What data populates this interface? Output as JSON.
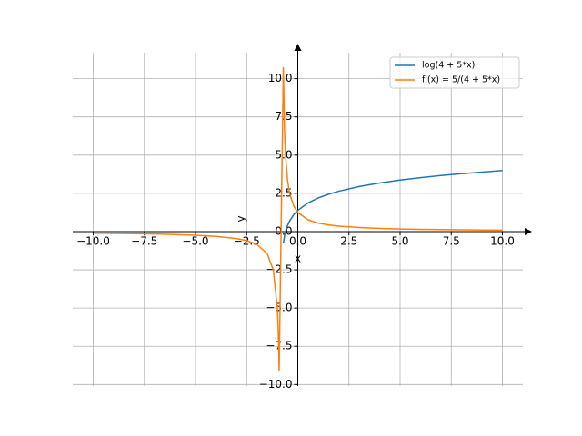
{
  "chart_data": {
    "type": "line",
    "x": [
      -10,
      -9,
      -8,
      -7,
      -6,
      -5,
      -4,
      -3,
      -2.5,
      -2,
      -1.5,
      -1.2,
      -1,
      -0.95,
      -0.91,
      -0.707,
      -0.65,
      -0.6,
      -0.5,
      -0.4,
      -0.2,
      0,
      0.5,
      1,
      1.5,
      2,
      3,
      4,
      5,
      6,
      7,
      8,
      9,
      10
    ],
    "series": [
      {
        "name": "log(4 + 5*x)",
        "color": "#1f77b4",
        "values": [
          null,
          null,
          null,
          null,
          null,
          null,
          null,
          null,
          null,
          null,
          null,
          null,
          null,
          null,
          null,
          -0.766,
          -0.288,
          0,
          0.405,
          0.693,
          1.099,
          1.386,
          1.872,
          2.197,
          2.442,
          2.639,
          2.944,
          3.178,
          3.367,
          3.526,
          3.664,
          3.784,
          3.892,
          3.989
        ]
      },
      {
        "name": "f'(x) = 5/(4 + 5*x)",
        "color": "#ff7f0e",
        "values": [
          -0.109,
          -0.122,
          -0.139,
          -0.161,
          -0.192,
          -0.238,
          -0.3125,
          -0.455,
          -0.588,
          -0.833,
          -1.429,
          -2.5,
          -5,
          -6.67,
          -9.09,
          10.75,
          6.67,
          5,
          3.33,
          2.5,
          1.667,
          1.25,
          0.769,
          0.556,
          0.435,
          0.357,
          0.263,
          0.208,
          0.172,
          0.147,
          0.128,
          0.114,
          0.102,
          0.0926
        ]
      }
    ],
    "x_label": "x",
    "y_label": "y",
    "xlim": [
      -11,
      11
    ],
    "ylim": [
      -10.1,
      11.7
    ],
    "xticks": [
      {
        "value": -10,
        "label": "−10.0"
      },
      {
        "value": -7.5,
        "label": "−7.5"
      },
      {
        "value": -5,
        "label": "−5.0"
      },
      {
        "value": -2.5,
        "label": "−2.5"
      },
      {
        "value": 0,
        "label": "0.0"
      },
      {
        "value": 2.5,
        "label": "2.5"
      },
      {
        "value": 5,
        "label": "5.0"
      },
      {
        "value": 7.5,
        "label": "7.5"
      },
      {
        "value": 10,
        "label": "10.0"
      }
    ],
    "yticks": [
      {
        "value": -10,
        "label": "−10.0"
      },
      {
        "value": -7.5,
        "label": "−7.5"
      },
      {
        "value": -5,
        "label": "−5.0"
      },
      {
        "value": -2.5,
        "label": "−2.5"
      },
      {
        "value": 0,
        "label": "0.0"
      },
      {
        "value": 2.5,
        "label": "2.5"
      },
      {
        "value": 5,
        "label": "5.0"
      },
      {
        "value": 7.5,
        "label": "7.5"
      },
      {
        "value": 10,
        "label": "10.0"
      }
    ],
    "grid": true,
    "legend": "upper right"
  }
}
